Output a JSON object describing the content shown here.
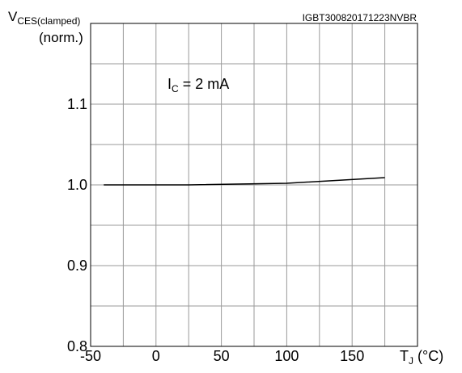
{
  "chart_data": {
    "type": "line",
    "title": "",
    "figure_id": "IGBT300820171223NVBR",
    "ylabel": {
      "main": "V",
      "sub": "CES(clamped)",
      "line2": "(norm.)"
    },
    "xlabel": {
      "main": "T",
      "sub": "J",
      "unit": " (°C)"
    },
    "annotation": {
      "main": "I",
      "sub": "C",
      "rest": " = 2 mA"
    },
    "xlim": [
      -50,
      200
    ],
    "ylim": [
      0.8,
      1.2
    ],
    "x_ticks": [
      -50,
      0,
      50,
      100,
      150
    ],
    "x_tick_labels": [
      "-50",
      "0",
      "50",
      "100",
      "150"
    ],
    "y_ticks": [
      0.8,
      0.9,
      1.0,
      1.1
    ],
    "y_tick_labels": [
      "0.8",
      "0.9",
      "1.0",
      "1.1"
    ],
    "grid": true,
    "x_grid_step": 25,
    "y_grid_step": 0.05,
    "series": [
      {
        "name": "",
        "color": "#000000",
        "x": [
          -40,
          25,
          100,
          175
        ],
        "y": [
          1.0,
          1.0,
          1.002,
          1.009
        ]
      }
    ]
  }
}
